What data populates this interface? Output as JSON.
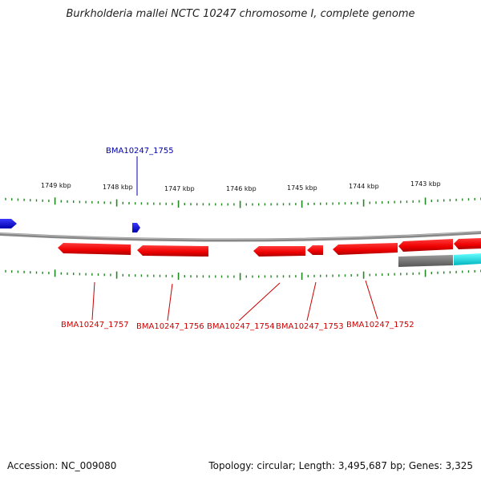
{
  "header": {
    "title": "Burkholderia mallei NCTC 10247 chromosome I, complete genome"
  },
  "footer": {
    "accession": "Accession: NC_009080",
    "stats": "Topology: circular; Length: 3,495,687 bp; Genes: 3,325"
  },
  "scale": {
    "kbp_labels": [
      "1749 kbp",
      "1748 kbp",
      "1747 kbp",
      "1746 kbp",
      "1745 kbp",
      "1744 kbp",
      "1743 kbp"
    ]
  },
  "genes": {
    "upper": [
      "BMA10247_1755"
    ],
    "lower": [
      "BMA10247_1757",
      "BMA10247_1756",
      "BMA10247_1754",
      "BMA10247_1753",
      "BMA10247_1752"
    ]
  },
  "colors": {
    "forward_gene": "#ee0000",
    "reverse_gene": "#0000ee",
    "label_forward": "#cc0000",
    "label_reverse": "#0000aa",
    "tick": "#228822",
    "backbone": "#888888",
    "cyan_feature": "#00e5ee"
  }
}
